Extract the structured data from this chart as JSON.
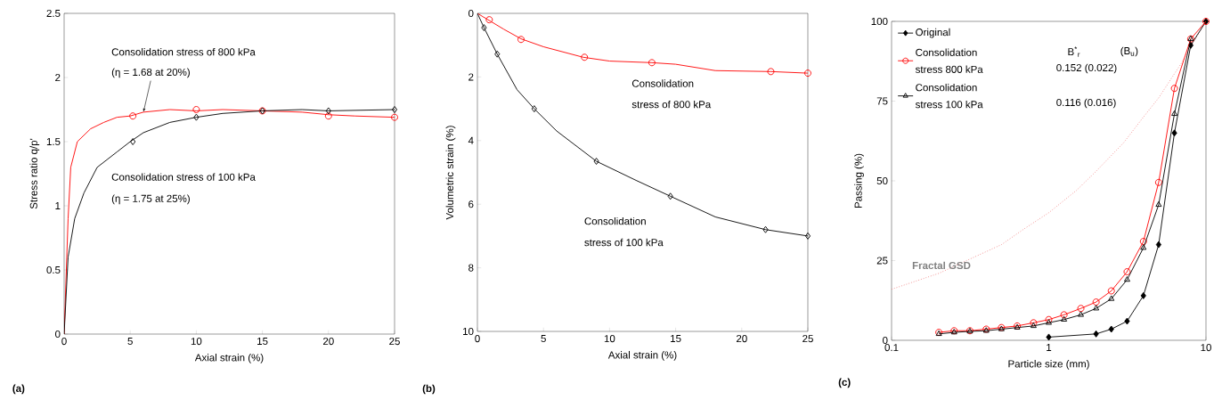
{
  "chart_data": [
    {
      "type": "line",
      "xlabel": "Axial strain (%)",
      "ylabel": "Stress ratio q/p'",
      "xlim": [
        0,
        25
      ],
      "ylim": [
        0,
        2.5
      ],
      "xticks": [
        0,
        5,
        10,
        15,
        20,
        25
      ],
      "yticks": [
        0,
        0.5,
        1,
        1.5,
        2,
        2.5
      ],
      "annotations": [
        "Consolidation stress of 800 kPa",
        {
          "text": "(η = 1.68 at 20%)",
          "x": 6,
          "y": 1.73
        },
        "Consolidation stress of 100 kPa",
        "(η = 1.75 at 25%)",
        "(a)"
      ],
      "series": [
        {
          "color": "#ff0000",
          "marker": "none",
          "x": [
            0,
            0.3,
            0.5,
            1,
            2,
            3,
            4,
            5,
            6,
            8,
            10,
            12,
            15,
            18,
            20,
            22,
            25
          ],
          "values": [
            0,
            0.9,
            1.3,
            1.5,
            1.6,
            1.65,
            1.69,
            1.7,
            1.73,
            1.75,
            1.74,
            1.75,
            1.74,
            1.73,
            1.71,
            1.7,
            1.69
          ]
        },
        {
          "type": "scatter",
          "color": "#ff0000",
          "marker": "circle",
          "x": [
            5.2,
            10,
            15,
            20,
            25
          ],
          "values": [
            1.7,
            1.75,
            1.74,
            1.7,
            1.69
          ]
        },
        {
          "color": "#000000",
          "marker": "none",
          "x": [
            0,
            0.3,
            0.8,
            1.5,
            2.5,
            4,
            5,
            6,
            8,
            10,
            12,
            15,
            18,
            20,
            25
          ],
          "values": [
            0,
            0.6,
            0.9,
            1.1,
            1.3,
            1.42,
            1.5,
            1.57,
            1.65,
            1.69,
            1.72,
            1.74,
            1.75,
            1.74,
            1.75
          ]
        },
        {
          "type": "scatter",
          "color": "#000000",
          "marker": "diamond",
          "x": [
            5.2,
            10,
            15,
            20,
            25
          ],
          "values": [
            1.5,
            1.69,
            1.74,
            1.74,
            1.75
          ]
        }
      ]
    },
    {
      "type": "line",
      "xlabel": "Axial strain (%)",
      "ylabel": "Volumetric strain (%)",
      "xlim": [
        0,
        25
      ],
      "ylim": [
        10,
        0
      ],
      "xticks": [
        0,
        5,
        10,
        15,
        20,
        25
      ],
      "yticks": [
        0,
        2,
        4,
        6,
        8,
        10
      ],
      "annotations": [
        "Consolidation",
        "stress of 800 kPa",
        "Consolidation",
        "stress of 100 kPa",
        "(b)"
      ],
      "series": [
        {
          "color": "#ff0000",
          "marker": "none",
          "x": [
            0,
            0.8,
            2,
            3.3,
            5,
            8,
            10,
            13.2,
            15,
            18,
            22.2,
            25
          ],
          "values": [
            0,
            0.2,
            0.5,
            0.8,
            1.05,
            1.38,
            1.5,
            1.55,
            1.6,
            1.8,
            1.83,
            1.88
          ]
        },
        {
          "type": "scatter",
          "color": "#ff0000",
          "marker": "circle",
          "x": [
            0.9,
            3.3,
            8.1,
            13.2,
            22.2,
            25
          ],
          "values": [
            0.2,
            0.82,
            1.38,
            1.55,
            1.83,
            1.88
          ]
        },
        {
          "color": "#000000",
          "marker": "none",
          "x": [
            0,
            0.5,
            1.5,
            3,
            4.3,
            6,
            9,
            12,
            14.6,
            18,
            21.8,
            25
          ],
          "values": [
            0,
            0.45,
            1.28,
            2.4,
            3.0,
            3.7,
            4.65,
            5.25,
            5.75,
            6.4,
            6.8,
            7.0
          ]
        },
        {
          "type": "scatter",
          "color": "#000000",
          "marker": "diamond",
          "x": [
            0.5,
            1.5,
            4.3,
            9,
            14.6,
            21.8,
            25
          ],
          "values": [
            0.45,
            1.28,
            3.0,
            4.65,
            5.75,
            6.8,
            7.0
          ]
        }
      ]
    },
    {
      "type": "line",
      "xlabel": "Particle size (mm)",
      "ylabel": "Passing (%)",
      "log": "x",
      "legend": "top left",
      "xlim": [
        0.1,
        10
      ],
      "ylim": [
        0,
        100
      ],
      "xticks": [
        0.1,
        1,
        10
      ],
      "yticks": [
        0,
        25,
        50,
        75,
        100
      ],
      "annotations": [
        "B$^{*}$$_{r}$",
        "(B$_{u}$)",
        "0.152  (0.022)",
        "0.116  (0.016)",
        "Fractal GSD",
        "(c)"
      ],
      "series": [
        {
          "color": "#f08080",
          "marker": "none",
          "line_style": "dotted",
          "x": [
            0.1,
            0.2,
            0.3,
            0.5,
            0.7,
            1,
            1.5,
            2,
            3,
            4,
            5,
            6,
            7,
            8,
            10
          ],
          "values": [
            16,
            21,
            25,
            30,
            35,
            40,
            47,
            53,
            62,
            70,
            76,
            82,
            87,
            92,
            100
          ]
        },
        {
          "name": "Original",
          "color": "#000000",
          "marker": "diamond",
          "x": [
            1,
            2,
            2.5,
            3.15,
            4,
            5,
            6.3,
            8,
            10
          ],
          "values": [
            1,
            2,
            3.5,
            6,
            14,
            30,
            65,
            92.5,
            100
          ]
        },
        {
          "name": "Consolidation stress 800 kPa",
          "color": "#ff0000",
          "marker": "circle",
          "x": [
            0.2,
            0.25,
            0.315,
            0.4,
            0.5,
            0.63,
            0.8,
            1,
            1.25,
            1.6,
            2,
            2.5,
            3.15,
            4,
            5,
            6.3,
            8,
            10
          ],
          "values": [
            2.5,
            3,
            3,
            3.5,
            4,
            4.5,
            5.5,
            6.5,
            8,
            10,
            12,
            15.5,
            21.5,
            31,
            49.5,
            79,
            94.5,
            100
          ]
        },
        {
          "name": "Consolidation stress 100 kPa",
          "color": "#000000",
          "marker": "triangle",
          "x": [
            0.2,
            0.25,
            0.315,
            0.4,
            0.5,
            0.63,
            0.8,
            1,
            1.25,
            1.6,
            2,
            2.5,
            3.15,
            4,
            5,
            6.3,
            8
          ],
          "values": [
            2,
            2.5,
            2.8,
            3,
            3.5,
            4,
            4.5,
            5.5,
            6.5,
            8,
            10,
            13,
            19,
            29,
            42.5,
            71,
            94.5
          ]
        }
      ]
    }
  ]
}
